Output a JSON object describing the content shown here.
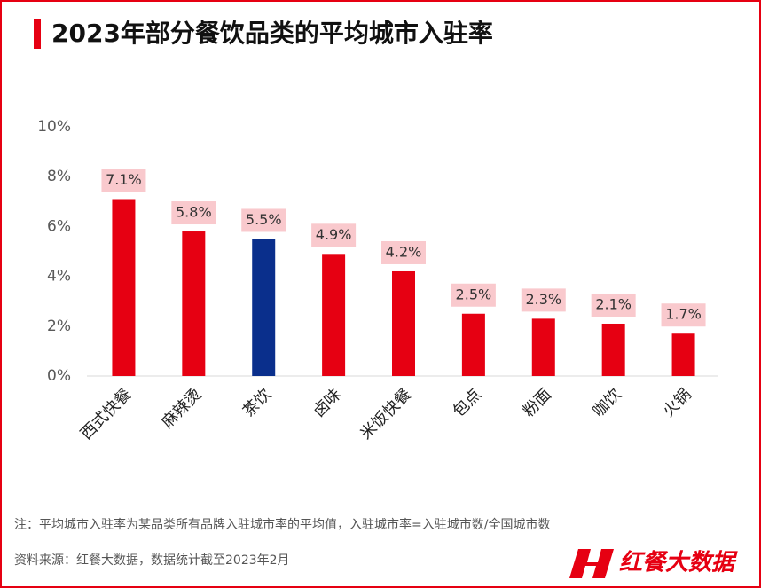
{
  "chart_data": {
    "type": "bar",
    "title": "2023年部分餐饮品类的平均城市入驻率",
    "categories": [
      "西式快餐",
      "麻辣烫",
      "茶饮",
      "卤味",
      "米饭快餐",
      "包点",
      "粉面",
      "咖饮",
      "火锅"
    ],
    "values": [
      7.1,
      5.8,
      5.5,
      4.9,
      4.2,
      2.5,
      2.3,
      2.1,
      1.7
    ],
    "value_labels": [
      "7.1%",
      "5.8%",
      "5.5%",
      "4.9%",
      "4.2%",
      "2.5%",
      "2.3%",
      "2.1%",
      "1.7%"
    ],
    "colors": [
      "#e60012",
      "#e60012",
      "#0a2f8c",
      "#e60012",
      "#e60012",
      "#e60012",
      "#e60012",
      "#e60012",
      "#e60012"
    ],
    "ylim": [
      0,
      10
    ],
    "yticks": [
      {
        "value": 0,
        "label": "0%"
      },
      {
        "value": 2,
        "label": "2%"
      },
      {
        "value": 4,
        "label": "4%"
      },
      {
        "value": 6,
        "label": "6%"
      },
      {
        "value": 8,
        "label": "8%"
      },
      {
        "value": 10,
        "label": "10%"
      }
    ],
    "grid": false
  },
  "notes": [
    "注：平均城市入驻率为某品类所有品牌入驻城市率的平均值，入驻城市率=入驻城市数/全国城市数",
    "资料来源：红餐大数据，数据统计截至2023年2月"
  ],
  "logo": "红餐大数据"
}
